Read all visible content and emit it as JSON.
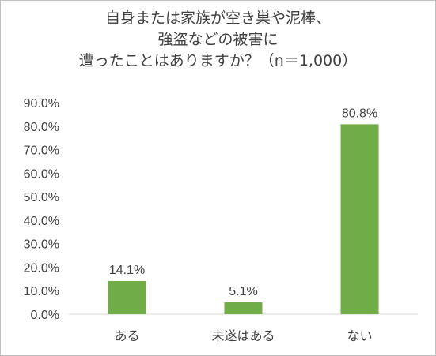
{
  "chart_data": {
    "type": "bar",
    "title_lines": [
      "自身または家族が空き巣や泥棒、",
      "強盗などの被害に",
      "遭ったことはありますか？（n＝1,000）"
    ],
    "categories": [
      "ある",
      "未遂はある",
      "ない"
    ],
    "values": [
      14.1,
      5.1,
      80.8
    ],
    "data_labels": [
      "14.1%",
      "5.1%",
      "80.8%"
    ],
    "y_ticks": [
      "0.0%",
      "10.0%",
      "20.0%",
      "30.0%",
      "40.0%",
      "50.0%",
      "60.0%",
      "70.0%",
      "80.0%",
      "90.0%"
    ],
    "ylim": [
      0,
      90
    ],
    "grid": false,
    "bar_color": "#70ad47"
  }
}
